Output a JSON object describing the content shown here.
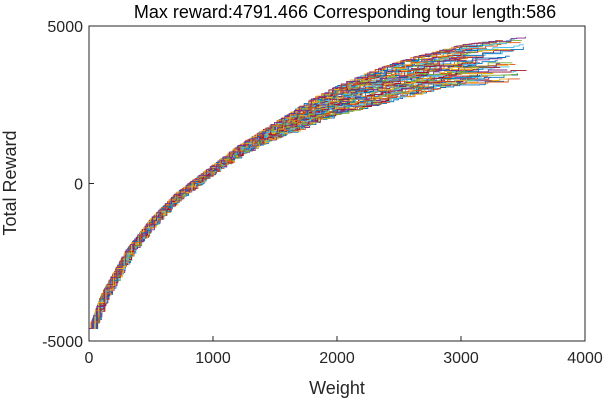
{
  "chart_data": {
    "type": "line",
    "title": "Max reward:4791.466 Corresponding tour length:586",
    "xlabel": "Weight",
    "ylabel": "Total Reward",
    "xlim": [
      0,
      4000
    ],
    "ylim": [
      -5000,
      5000
    ],
    "xticks": [
      0,
      1000,
      2000,
      3000,
      4000
    ],
    "yticks": [
      -5000,
      0,
      5000
    ],
    "xtick_labels": [
      "0",
      "1000",
      "2000",
      "3000",
      "4000"
    ],
    "ytick_labels": [
      "-5000",
      "0",
      "5000"
    ],
    "grid": false,
    "legend": "none",
    "series_count": 60,
    "envelope": {
      "x": [
        0,
        100,
        200,
        300,
        400,
        500,
        600,
        700,
        800,
        900,
        1000,
        1200,
        1400,
        1600,
        1800,
        2000,
        2200,
        2400,
        2600,
        2800,
        3000,
        3200,
        3400,
        3530
      ],
      "y_start": -4600,
      "y_upper": [
        -4600,
        -3500,
        -2800,
        -2100,
        -1600,
        -1100,
        -700,
        -300,
        0,
        300,
        600,
        1200,
        1700,
        2200,
        2700,
        3100,
        3450,
        3750,
        4000,
        4200,
        4400,
        4500,
        4600,
        4650
      ],
      "y_lower": [
        -4600,
        -3700,
        -3000,
        -2300,
        -1800,
        -1300,
        -900,
        -500,
        -200,
        100,
        400,
        900,
        1300,
        1600,
        1900,
        2200,
        2400,
        2600,
        2800,
        3000,
        3100,
        3150,
        3200,
        3300
      ],
      "end_weight_range": [
        3000,
        3530
      ]
    },
    "colors": [
      "#0072bd",
      "#d95319",
      "#edb120",
      "#7e2f8e",
      "#77ac30",
      "#4dbeee",
      "#a2142f"
    ]
  }
}
